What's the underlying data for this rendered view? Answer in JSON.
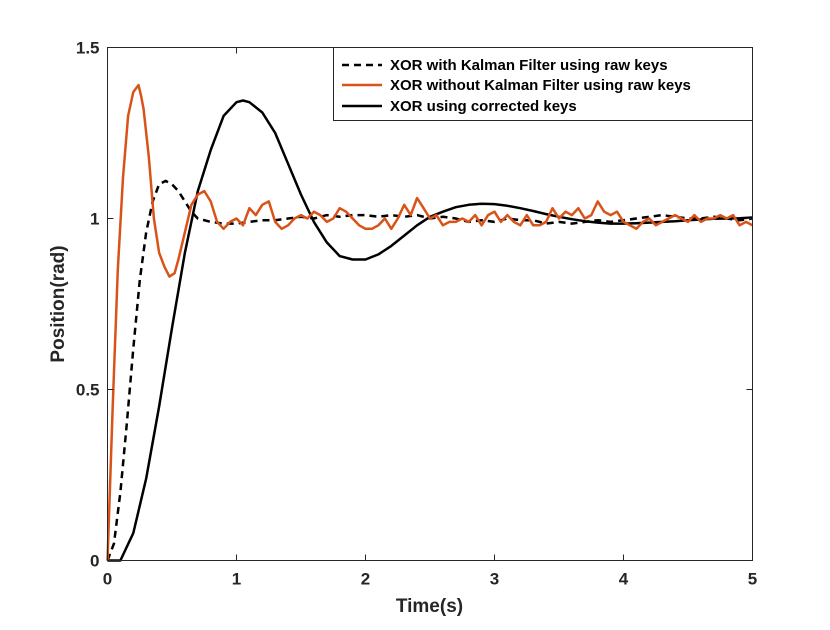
{
  "chart_data": {
    "type": "line",
    "title": "",
    "xlabel": "Time(s)",
    "ylabel": "Position(rad)",
    "xlim": [
      0,
      5
    ],
    "ylim": [
      0,
      1.5
    ],
    "xticks": [
      0,
      1,
      2,
      3,
      4,
      5
    ],
    "xtick_labels": [
      "0",
      "1",
      "2",
      "3",
      "4",
      "5"
    ],
    "yticks": [
      0,
      0.5,
      1,
      1.5
    ],
    "ytick_labels": [
      "0",
      "0.5",
      "1",
      "1.5"
    ],
    "grid": false,
    "legend_position": "top-right",
    "series": [
      {
        "name": "XOR with Kalman Filter  using raw keys",
        "style": "dashed",
        "color": "#000000",
        "x": [
          0,
          0.05,
          0.1,
          0.15,
          0.2,
          0.25,
          0.3,
          0.35,
          0.4,
          0.45,
          0.5,
          0.55,
          0.6,
          0.65,
          0.7,
          0.8,
          0.9,
          1.0,
          1.1,
          1.2,
          1.3,
          1.4,
          1.5,
          1.6,
          1.7,
          1.8,
          1.9,
          2.0,
          2.1,
          2.2,
          2.3,
          2.4,
          2.5,
          2.6,
          2.7,
          2.8,
          2.9,
          3.0,
          3.1,
          3.2,
          3.3,
          3.4,
          3.5,
          3.6,
          3.7,
          3.8,
          3.9,
          4.0,
          4.1,
          4.2,
          4.3,
          4.4,
          4.5,
          4.6,
          4.7,
          4.8,
          4.9,
          5.0
        ],
        "y": [
          0,
          0.05,
          0.2,
          0.4,
          0.62,
          0.82,
          0.96,
          1.05,
          1.1,
          1.11,
          1.1,
          1.08,
          1.05,
          1.02,
          1.0,
          0.99,
          0.985,
          0.985,
          0.99,
          0.995,
          0.995,
          1.0,
          1.005,
          1.0,
          1.01,
          1.005,
          1.01,
          1.01,
          1.005,
          1.01,
          1.005,
          1.01,
          1.0,
          1.005,
          1.0,
          0.99,
          0.995,
          0.99,
          1.0,
          0.995,
          0.995,
          0.985,
          0.99,
          0.985,
          0.99,
          0.995,
          0.99,
          0.995,
          1.0,
          1.005,
          1.01,
          1.005,
          1.0,
          1.0,
          1.005,
          1.0,
          0.995,
          1.0
        ]
      },
      {
        "name": "XOR without Kalman Filter using raw keys",
        "style": "solid",
        "color": "#d95319",
        "x": [
          0,
          0.04,
          0.08,
          0.12,
          0.16,
          0.2,
          0.24,
          0.26,
          0.28,
          0.32,
          0.36,
          0.4,
          0.44,
          0.48,
          0.52,
          0.55,
          0.6,
          0.65,
          0.7,
          0.75,
          0.8,
          0.85,
          0.9,
          0.95,
          1.0,
          1.05,
          1.1,
          1.15,
          1.2,
          1.25,
          1.3,
          1.35,
          1.4,
          1.45,
          1.5,
          1.55,
          1.6,
          1.65,
          1.7,
          1.75,
          1.8,
          1.85,
          1.9,
          1.95,
          2.0,
          2.05,
          2.1,
          2.15,
          2.2,
          2.25,
          2.3,
          2.35,
          2.4,
          2.45,
          2.5,
          2.55,
          2.6,
          2.65,
          2.7,
          2.75,
          2.8,
          2.85,
          2.9,
          2.95,
          3.0,
          3.05,
          3.1,
          3.15,
          3.2,
          3.25,
          3.3,
          3.35,
          3.4,
          3.45,
          3.5,
          3.55,
          3.6,
          3.65,
          3.7,
          3.75,
          3.8,
          3.85,
          3.9,
          3.95,
          4.0,
          4.05,
          4.1,
          4.15,
          4.2,
          4.25,
          4.3,
          4.35,
          4.4,
          4.45,
          4.5,
          4.55,
          4.6,
          4.65,
          4.7,
          4.75,
          4.8,
          4.85,
          4.9,
          4.95,
          5.0
        ],
        "y": [
          0,
          0.45,
          0.85,
          1.12,
          1.3,
          1.37,
          1.39,
          1.36,
          1.32,
          1.18,
          1.0,
          0.9,
          0.86,
          0.83,
          0.84,
          0.88,
          0.96,
          1.04,
          1.07,
          1.08,
          1.05,
          0.99,
          0.97,
          0.99,
          1.0,
          0.98,
          1.03,
          1.01,
          1.04,
          1.05,
          0.99,
          0.97,
          0.98,
          1.0,
          1.01,
          1.0,
          1.02,
          1.01,
          0.99,
          1.0,
          1.03,
          1.02,
          1.0,
          0.98,
          0.97,
          0.97,
          0.98,
          1.0,
          0.97,
          1.0,
          1.04,
          1.01,
          1.06,
          1.03,
          1.0,
          1.01,
          0.98,
          0.99,
          0.99,
          1.0,
          0.99,
          1.01,
          0.98,
          1.01,
          1.02,
          0.99,
          1.01,
          0.99,
          0.98,
          1.01,
          0.98,
          0.98,
          0.99,
          1.03,
          1.0,
          1.02,
          1.01,
          1.03,
          1.0,
          1.01,
          1.05,
          1.02,
          1.01,
          1.02,
          0.99,
          0.98,
          0.97,
          0.99,
          1.0,
          0.98,
          0.99,
          1.0,
          1.01,
          1.0,
          0.99,
          1.01,
          0.99,
          1.0,
          1.0,
          1.01,
          1.0,
          1.01,
          0.98,
          0.99,
          0.98
        ]
      },
      {
        "name": "XOR using corrected keys",
        "style": "solid",
        "color": "#000000",
        "x": [
          0,
          0.1,
          0.2,
          0.3,
          0.4,
          0.5,
          0.6,
          0.7,
          0.8,
          0.9,
          1.0,
          1.05,
          1.1,
          1.2,
          1.3,
          1.4,
          1.5,
          1.6,
          1.7,
          1.8,
          1.9,
          2.0,
          2.1,
          2.2,
          2.3,
          2.4,
          2.5,
          2.6,
          2.7,
          2.8,
          2.9,
          3.0,
          3.1,
          3.2,
          3.3,
          3.4,
          3.5,
          3.6,
          3.7,
          3.8,
          3.9,
          4.0,
          4.1,
          4.2,
          4.3,
          4.4,
          4.5,
          4.6,
          4.7,
          4.8,
          4.9,
          5.0
        ],
        "y": [
          0,
          0,
          0.08,
          0.24,
          0.45,
          0.68,
          0.9,
          1.08,
          1.2,
          1.3,
          1.34,
          1.345,
          1.34,
          1.31,
          1.25,
          1.16,
          1.07,
          0.99,
          0.93,
          0.89,
          0.88,
          0.88,
          0.895,
          0.92,
          0.95,
          0.98,
          1.005,
          1.02,
          1.033,
          1.04,
          1.043,
          1.042,
          1.037,
          1.03,
          1.022,
          1.013,
          1.005,
          0.998,
          0.992,
          0.988,
          0.985,
          0.985,
          0.986,
          0.988,
          0.99,
          0.992,
          0.995,
          0.997,
          0.999,
          1.0,
          1.001,
          1.003
        ]
      }
    ]
  }
}
